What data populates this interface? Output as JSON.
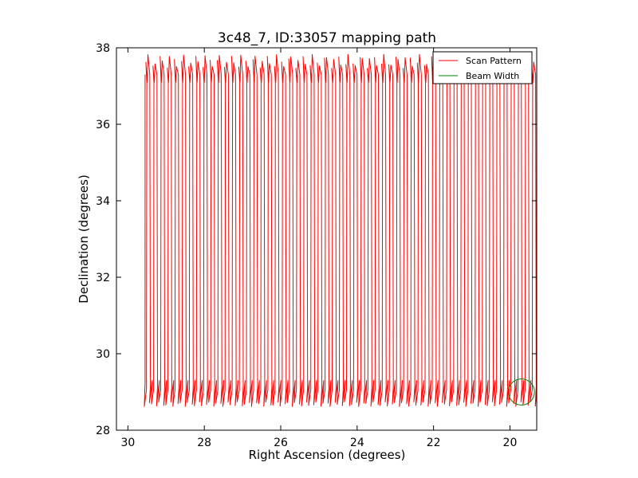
{
  "chart_data": {
    "type": "line",
    "title": "3c48_7, ID:33057 mapping path",
    "xlabel": "Right Ascension (degrees)",
    "ylabel": "Declination (degrees)",
    "xlim": [
      30.3,
      19.3
    ],
    "ylim": [
      28,
      38
    ],
    "x_reversed": true,
    "xticks": [
      30,
      28,
      26,
      24,
      22,
      20
    ],
    "yticks": [
      28,
      30,
      32,
      34,
      36,
      38
    ],
    "grid": false,
    "legend_position": "top-right",
    "series": [
      {
        "name": "Scan Pattern",
        "color": "#ff0000",
        "kind": "raster-scan",
        "ra_start": 29.55,
        "ra_end": 19.3,
        "ra_step_per_leg": 0.0935,
        "dec_min": 28.6,
        "dec_max": 37.8
      },
      {
        "name": "Beam Width",
        "color": "#008000",
        "kind": "circle",
        "center": [
          19.7,
          29.0
        ],
        "radius_deg": 0.36
      }
    ]
  }
}
